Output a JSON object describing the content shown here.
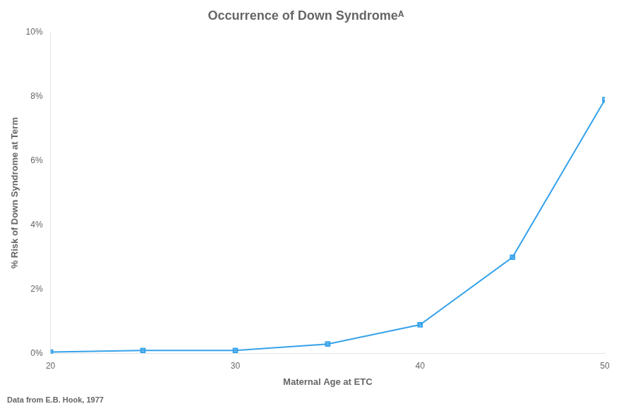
{
  "chart_data": {
    "type": "line",
    "title": "Occurrence of Down Syndromeᴬ",
    "x_label": "Maternal Age at ETC",
    "y_label": "% Risk of Down Syndrome at Term",
    "annotations": [
      "Data from E.B. Hook, 1977"
    ],
    "x": [
      20,
      25,
      30,
      35,
      40,
      45,
      50
    ],
    "values": [
      0.0005,
      0.001,
      0.001,
      0.003,
      0.009,
      0.03,
      0.079
    ],
    "marker": "square",
    "xlim": [
      20,
      50
    ],
    "xticks": [
      20,
      30,
      40,
      50
    ],
    "ylim": [
      0,
      0.1
    ],
    "yticks": [
      {
        "value": 0,
        "label": "0%"
      },
      {
        "value": 0.02,
        "label": "2%"
      },
      {
        "value": 0.04,
        "label": "4%"
      },
      {
        "value": 0.06,
        "label": "6%"
      },
      {
        "value": 0.08,
        "label": "8%"
      },
      {
        "value": 0.1,
        "label": "10%"
      }
    ],
    "grid": false
  }
}
